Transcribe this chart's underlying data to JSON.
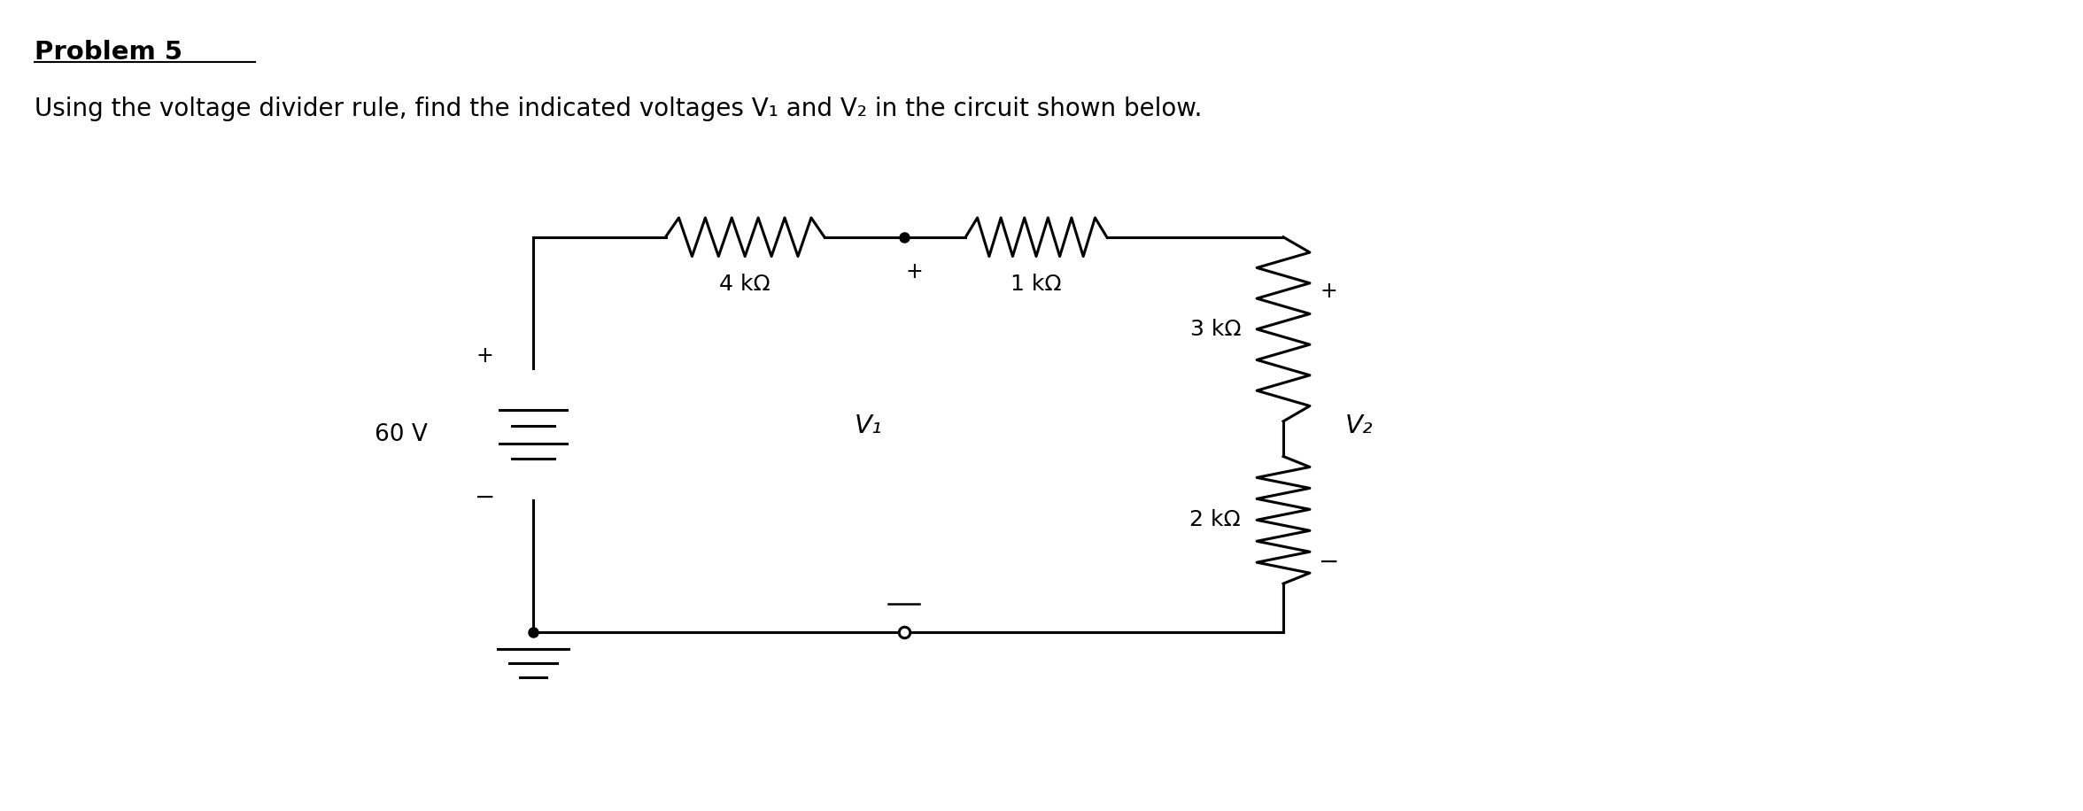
{
  "title": "Problem 5",
  "subtitle": "Using the voltage divider rule, find the indicated voltages V₁ and V₂ in the circuit shown below.",
  "bg_color": "#ffffff",
  "text_color": "#000000",
  "source_voltage": "60 V",
  "r1_label": "4 kΩ",
  "r2_label": "1 kΩ",
  "r3_label": "3 kΩ",
  "r4_label": "2 kΩ",
  "v1_label": "V₁",
  "v2_label": "V₂"
}
